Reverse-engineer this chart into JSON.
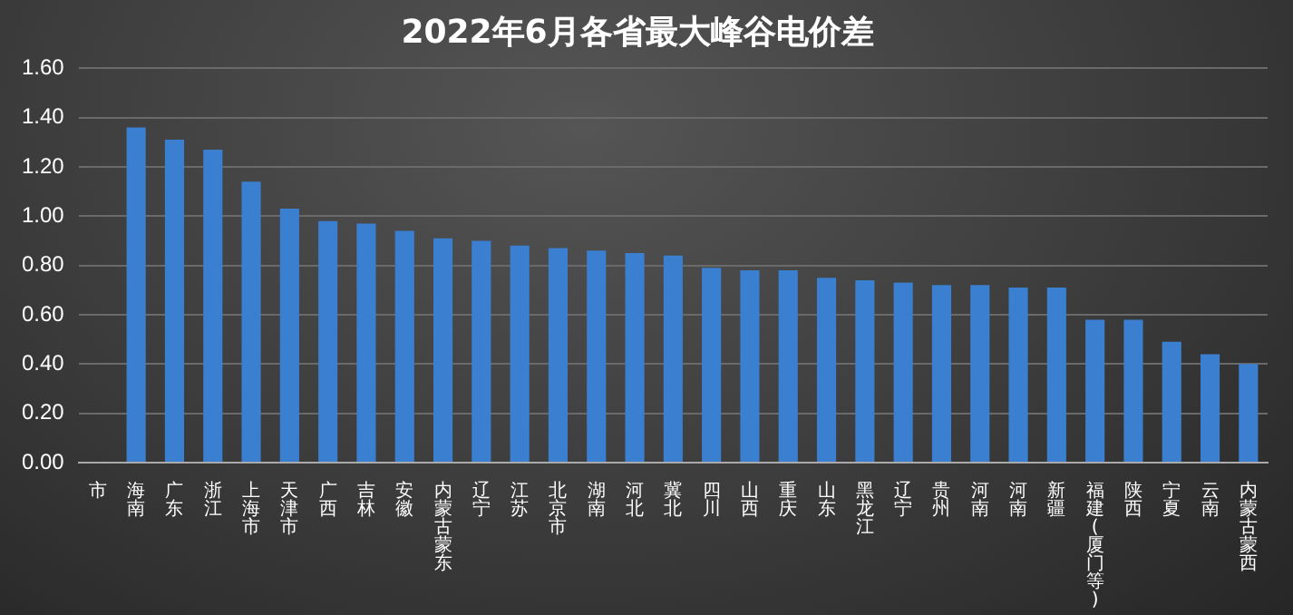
{
  "chart_data": {
    "type": "bar",
    "title": "2022年6月各省最大峰谷电价差",
    "categories": [
      "市",
      "海南",
      "广东",
      "浙江",
      "上海市",
      "天津市",
      "广西",
      "吉林",
      "安徽",
      "内蒙古蒙东",
      "辽宁",
      "江苏",
      "北京市",
      "湖南",
      "河北",
      "冀北",
      "四川",
      "山西",
      "重庆",
      "山东",
      "黑龙江",
      "辽宁",
      "贵州",
      "河南",
      "河南",
      "新疆",
      "福建(厦门等)",
      "陕西",
      "宁夏",
      "云南",
      "内蒙古蒙西"
    ],
    "values": [
      null,
      1.36,
      1.31,
      1.27,
      1.14,
      1.03,
      0.98,
      0.97,
      0.94,
      0.91,
      0.9,
      0.88,
      0.87,
      0.86,
      0.85,
      0.84,
      0.79,
      0.78,
      0.78,
      0.75,
      0.74,
      0.73,
      0.72,
      0.72,
      0.71,
      0.71,
      0.58,
      0.58,
      0.49,
      0.44,
      0.4
    ],
    "color": "#3a7fd0",
    "ylim": [
      0,
      1.6
    ],
    "yticks": [
      {
        "value": 0,
        "label": "0.00"
      },
      {
        "value": 0.2,
        "label": "0.20"
      },
      {
        "value": 0.4,
        "label": "0.40"
      },
      {
        "value": 0.6,
        "label": "0.60"
      },
      {
        "value": 0.8,
        "label": "0.80"
      },
      {
        "value": 1,
        "label": "1.00"
      },
      {
        "value": 1.2,
        "label": "1.20"
      },
      {
        "value": 1.4,
        "label": "1.40"
      },
      {
        "value": 1.6,
        "label": "1.60"
      }
    ],
    "grid": "y",
    "legend": false
  }
}
